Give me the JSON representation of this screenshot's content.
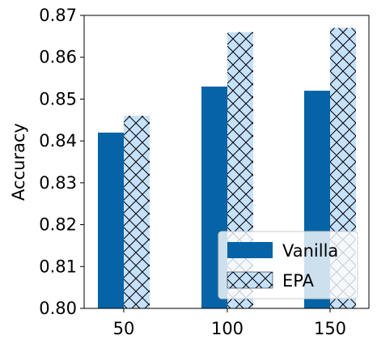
{
  "chart_data": {
    "type": "bar",
    "categories": [
      "50",
      "100",
      "150"
    ],
    "series": [
      {
        "name": "Vanilla",
        "values": [
          0.842,
          0.853,
          0.852
        ],
        "color": "#0563a6",
        "hatch": "none"
      },
      {
        "name": "EPA",
        "values": [
          0.846,
          0.866,
          0.867
        ],
        "color": "#c6e1fb",
        "hatch": "cross"
      }
    ],
    "title": "",
    "xlabel": "",
    "ylabel": "Accuracy",
    "ylim": [
      0.8,
      0.87
    ],
    "yticks": [
      "0.80",
      "0.81",
      "0.82",
      "0.83",
      "0.84",
      "0.85",
      "0.86",
      "0.87"
    ],
    "grid": false,
    "legend_position": "lower-right"
  }
}
